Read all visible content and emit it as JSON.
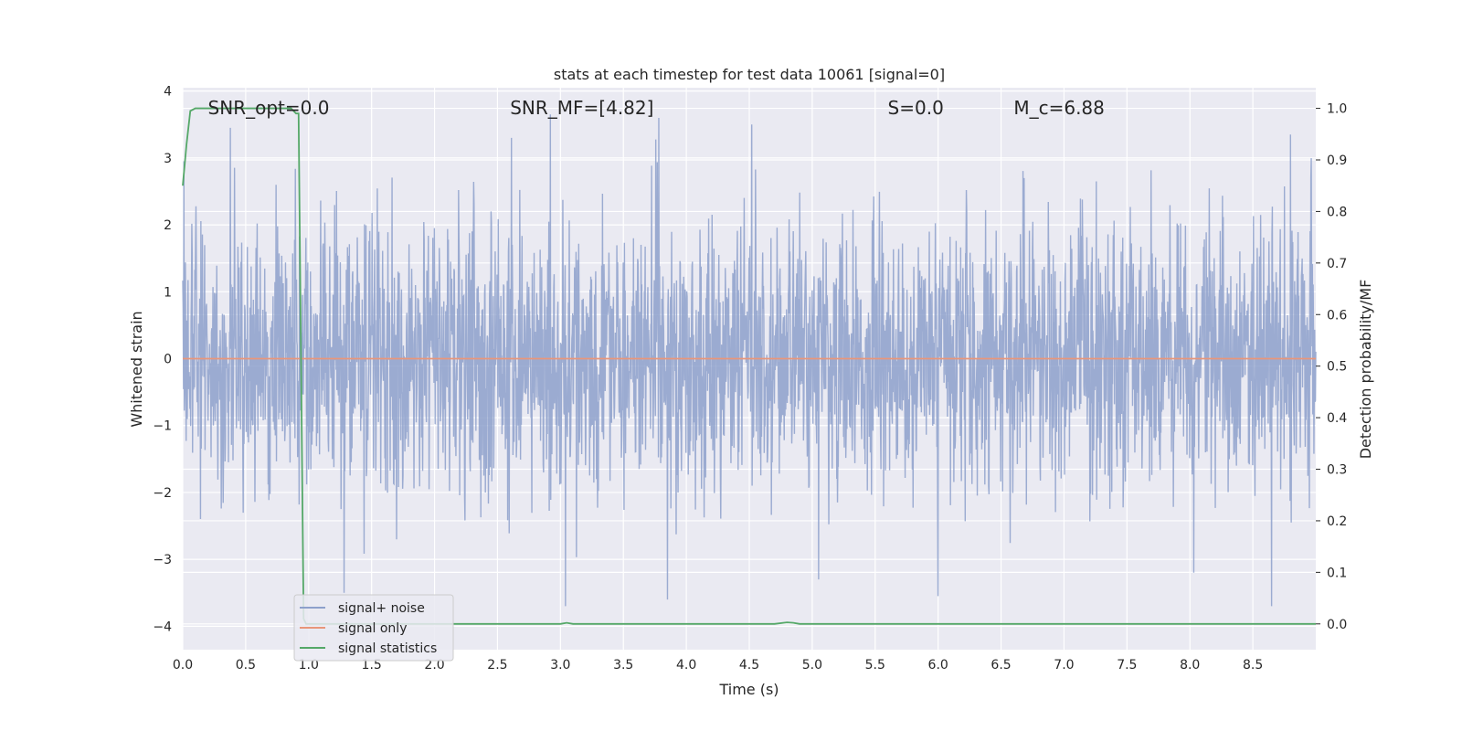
{
  "chart_data": {
    "type": "line",
    "title": "stats at each timestep for test data 10061 [signal=0]",
    "xlabel": "Time (s)",
    "ylabel": "Whitened strain",
    "ylabel_right": "Detection probability/MF",
    "xlim": [
      0.0,
      9.0
    ],
    "ylim": [
      -4.35,
      4.05
    ],
    "ylim_right": [
      -0.05,
      1.04
    ],
    "x_ticks": [
      "0.0",
      "0.5",
      "1.0",
      "1.5",
      "2.0",
      "2.5",
      "3.0",
      "3.5",
      "4.0",
      "4.5",
      "5.0",
      "5.5",
      "6.0",
      "6.5",
      "7.0",
      "7.5",
      "8.0",
      "8.5"
    ],
    "y_ticks": [
      "4",
      "3",
      "2",
      "1",
      "0",
      "−1",
      "−2",
      "−3",
      "−4"
    ],
    "y_right_ticks": [
      "1.0",
      "0.9",
      "0.8",
      "0.7",
      "0.6",
      "0.5",
      "0.4",
      "0.3",
      "0.2",
      "0.1",
      "0.0"
    ],
    "grid": true,
    "legend_position": "lower-left",
    "annotations": [
      {
        "text": "SNR_opt=0.0",
        "x": 0.2,
        "y": 3.75
      },
      {
        "text": "SNR_MF=[4.82]",
        "x": 2.6,
        "y": 3.75
      },
      {
        "text": "S=0.0",
        "x": 5.6,
        "y": 3.75
      },
      {
        "text": "M_c=6.88",
        "x": 6.6,
        "y": 3.75
      }
    ],
    "series": [
      {
        "name": "signal+ noise",
        "color": "#8da0cb",
        "axis": "left",
        "kind": "noise",
        "amplitude_std": 1.0,
        "x_range": [
          0.0,
          9.0
        ],
        "notable_peaks": [
          {
            "x": 0.93,
            "y": 1.5
          },
          {
            "x": 2.61,
            "y": 3.3
          },
          {
            "x": 2.92,
            "y": 3.65
          },
          {
            "x": 4.52,
            "y": 3.5
          },
          {
            "x": 8.8,
            "y": 3.35
          },
          {
            "x": 8.96,
            "y": 2.7
          },
          {
            "x": 3.85,
            "y": -3.6
          },
          {
            "x": 1.28,
            "y": -3.5
          },
          {
            "x": 5.05,
            "y": -3.3
          },
          {
            "x": 6.0,
            "y": -3.55
          },
          {
            "x": 8.65,
            "y": -3.7
          },
          {
            "x": 8.03,
            "y": -3.2
          }
        ]
      },
      {
        "name": "signal only",
        "color": "#e8967a",
        "axis": "left",
        "x": [
          0.0,
          9.0
        ],
        "y": [
          0.0,
          0.0
        ]
      },
      {
        "name": "signal statistics",
        "color": "#55a868",
        "axis": "right",
        "x": [
          0.0,
          0.03,
          0.06,
          0.1,
          0.2,
          0.4,
          0.6,
          0.8,
          0.86,
          0.9,
          0.92,
          0.94,
          0.96,
          0.98,
          1.0,
          1.2,
          2.0,
          3.0,
          3.05,
          3.1,
          3.2,
          4.0,
          4.7,
          4.8,
          4.85,
          4.9,
          5.0,
          6.0,
          7.0,
          8.0,
          9.0
        ],
        "y": [
          0.85,
          0.93,
          0.995,
          1.0,
          1.0,
          1.0,
          1.0,
          1.0,
          1.0,
          0.99,
          0.99,
          0.5,
          0.01,
          0.0,
          0.0,
          0.0,
          0.0,
          0.0,
          0.002,
          0.0,
          0.0,
          0.0,
          0.0,
          0.003,
          0.002,
          0.0,
          0.0,
          0.0,
          0.0,
          0.0,
          0.0
        ]
      }
    ]
  }
}
